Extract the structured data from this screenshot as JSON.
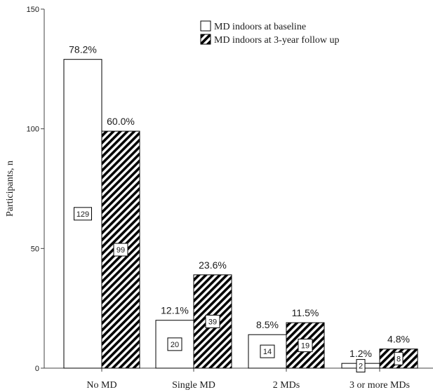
{
  "chart_data": {
    "type": "bar",
    "title": "",
    "xlabel": "",
    "ylabel": "Participants, n",
    "ylim": [
      0,
      150
    ],
    "yticks": [
      0,
      50,
      100,
      150
    ],
    "grid": false,
    "legend_position": "top-right",
    "categories": [
      "No MD",
      "Single MD",
      "2 MDs",
      "3 or more MDs"
    ],
    "series": [
      {
        "name": "MD indoors at baseline",
        "fill": "white",
        "values": [
          129,
          20,
          14,
          2
        ],
        "value_labels": [
          "129",
          "20",
          "14",
          "2"
        ],
        "percent_labels": [
          "78.2%",
          "12.1%",
          "8.5%",
          "1.2%"
        ]
      },
      {
        "name": "MD indoors at 3-year follow up",
        "fill": "diagonal-hatch",
        "values": [
          99,
          39,
          19,
          8
        ],
        "value_labels": [
          "99",
          "39",
          "19",
          "8"
        ],
        "percent_labels": [
          "60.0%",
          "23.6%",
          "11.5%",
          "4.8%"
        ]
      }
    ]
  },
  "colors": {
    "background": "#ffffff",
    "bar_outline": "#000000",
    "hatch": "#000000",
    "text": "#1a1a1a",
    "axis": "#444444"
  }
}
